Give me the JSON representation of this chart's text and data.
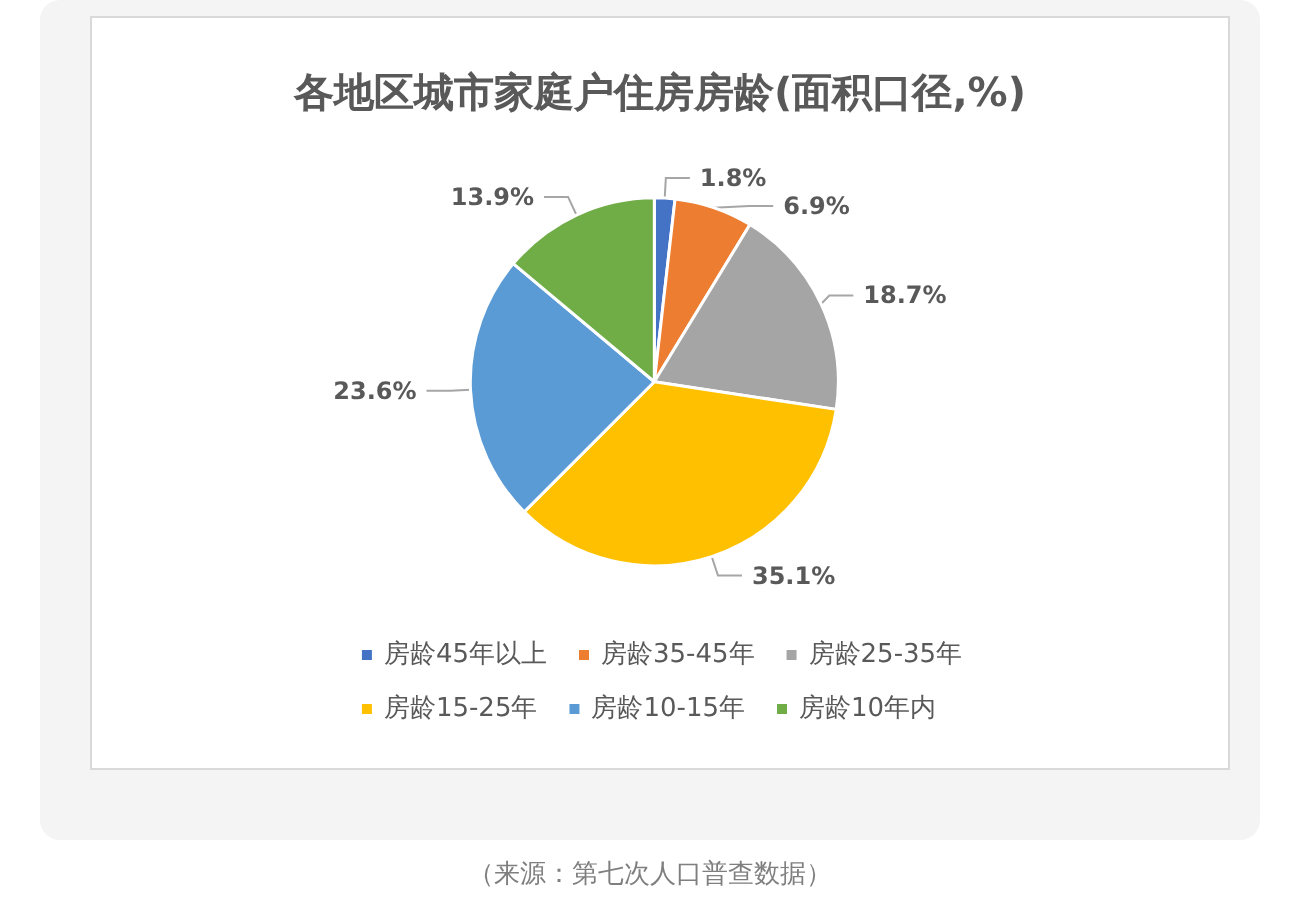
{
  "chart_data": {
    "type": "pie",
    "title": "各地区城市家庭户住房房龄(面积口径,%)",
    "categories": [
      "房龄45年以上",
      "房龄35-45年",
      "房龄25-35年",
      "房龄15-25年",
      "房龄10-15年",
      "房龄10年内"
    ],
    "values": [
      1.8,
      6.9,
      18.7,
      35.1,
      23.6,
      13.9
    ],
    "value_labels": [
      "1.8%",
      "6.9%",
      "18.7%",
      "35.1%",
      "23.6%",
      "13.9%"
    ],
    "colors": [
      "#4472c4",
      "#ed7d31",
      "#a5a5a5",
      "#ffc000",
      "#5b9bd5",
      "#70ad47"
    ],
    "legend": "bottom",
    "annotations": [
      "（来源：第七次人口普查数据）"
    ]
  }
}
